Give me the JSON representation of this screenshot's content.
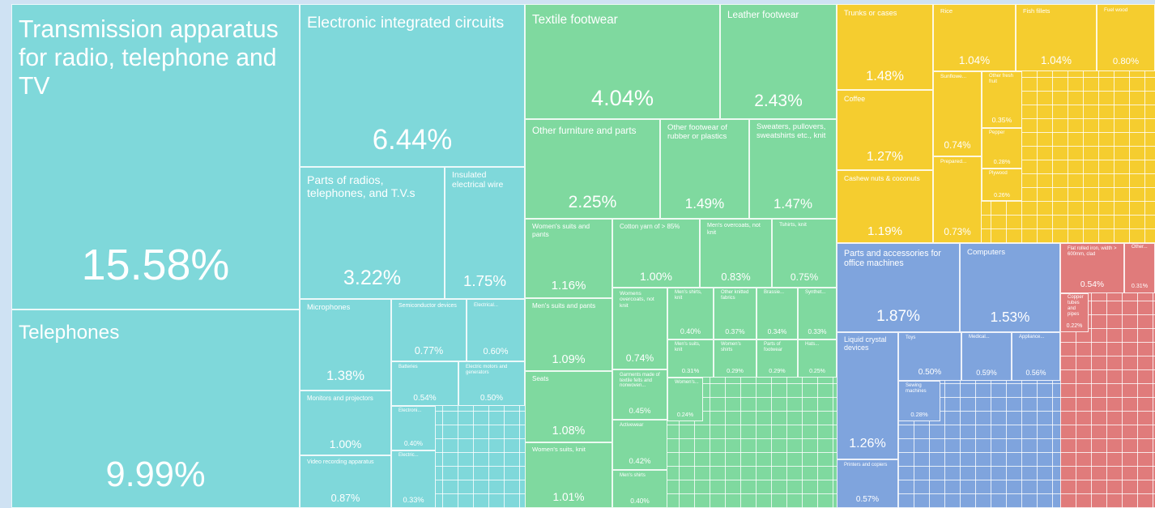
{
  "chart_data": {
    "type": "treemap",
    "categories": [
      "Transmission apparatus for radio, telephone and TV",
      "Telephones",
      "Electronic integrated circuits",
      "Parts of radios, telephones, and T.V.s",
      "Insulated electrical wire",
      "Microphones",
      "Semiconductor devices",
      "Electrical...",
      "Batteries",
      "Electric motors and generators",
      "Monitors and projectors",
      "Video recording apparatus",
      "Electroni...",
      "Electric...",
      "Textile footwear",
      "Leather footwear",
      "Other furniture and parts",
      "Other footwear of rubber or plastics",
      "Sweaters, pullovers, sweatshirts etc., knit",
      "Women's suits and pants",
      "Cotton yarn of > 85%",
      "Men's overcoats, not knit",
      "Tshirts, knit",
      "Men's suits and pants",
      "Seats",
      "Women's suits, knit",
      "Womens overcoats, not knit",
      "Men's shirts, knit",
      "Other knitted fabrics",
      "Brassie...",
      "Synthet...",
      "Men's suits, knit",
      "Women's shirts",
      "Parts of footwear",
      "Hats...",
      "Garments made of textile felts and nonwoven...",
      "Activewear",
      "Men's shirts",
      "Women's...",
      "Trunks or cases",
      "Rice",
      "Fish fillets",
      "Fuel wood",
      "Coffee",
      "Cashew nuts & coconuts",
      "Sunflowe...",
      "Prepared...",
      "Other fresh fruit",
      "Pepper",
      "Plywood",
      "Parts and accessories for office machines",
      "Computers",
      "Liquid crystal devices",
      "Toys",
      "Medical...",
      "Appliance...",
      "Sewing machines",
      "Printers and copiers",
      "Flat rolled iron, width > 600mm, clad",
      "Other...",
      "Copper tubes and pipes"
    ],
    "values": [
      15.58,
      9.99,
      6.44,
      3.22,
      1.75,
      1.38,
      0.77,
      0.6,
      0.54,
      0.5,
      1.0,
      0.87,
      0.4,
      0.33,
      4.04,
      2.43,
      2.25,
      1.49,
      1.47,
      1.16,
      1.0,
      0.83,
      0.75,
      1.09,
      1.08,
      1.01,
      0.74,
      0.4,
      0.37,
      0.34,
      0.33,
      0.31,
      0.29,
      0.29,
      0.25,
      0.45,
      0.42,
      0.4,
      0.24,
      1.48,
      1.04,
      1.04,
      0.8,
      1.27,
      1.19,
      0.74,
      0.73,
      0.35,
      0.28,
      0.26,
      1.87,
      1.53,
      1.26,
      0.5,
      0.59,
      0.56,
      0.28,
      0.57,
      0.54,
      0.31,
      0.22
    ],
    "value_labels": [
      "15.58%",
      "9.99%",
      "6.44%",
      "3.22%",
      "1.75%",
      "1.38%",
      "0.77%",
      "0.60%",
      "0.54%",
      "0.50%",
      "1.00%",
      "0.87%",
      "0.40%",
      "0.33%",
      "4.04%",
      "2.43%",
      "2.25%",
      "1.49%",
      "1.47%",
      "1.16%",
      "1.00%",
      "0.83%",
      "0.75%",
      "1.09%",
      "1.08%",
      "1.01%",
      "0.74%",
      "0.40%",
      "0.37%",
      "0.34%",
      "0.33%",
      "0.31%",
      "0.29%",
      "0.29%",
      "0.25%",
      "0.45%",
      "0.42%",
      "0.40%",
      "0.24%",
      "1.48%",
      "1.04%",
      "1.04%",
      "0.80%",
      "1.27%",
      "1.19%",
      "0.74%",
      "0.73%",
      "0.35%",
      "0.28%",
      "0.26%",
      "1.87%",
      "1.53%",
      "1.26%",
      "0.50%",
      "0.59%",
      "0.56%",
      "0.28%",
      "0.57%",
      "0.54%",
      "0.31%",
      "0.22%"
    ],
    "colors": [
      "#7fd8da",
      "#7fd8da",
      "#7fd8da",
      "#7fd8da",
      "#7fd8da",
      "#7fd8da",
      "#7fd8da",
      "#7fd8da",
      "#7fd8da",
      "#7fd8da",
      "#7fd8da",
      "#7fd8da",
      "#7fd8da",
      "#7fd8da",
      "#7fd99f",
      "#7fd99f",
      "#7fd99f",
      "#7fd99f",
      "#7fd99f",
      "#7fd99f",
      "#7fd99f",
      "#7fd99f",
      "#7fd99f",
      "#7fd99f",
      "#7fd99f",
      "#7fd99f",
      "#7fd99f",
      "#7fd99f",
      "#7fd99f",
      "#7fd99f",
      "#7fd99f",
      "#7fd99f",
      "#7fd99f",
      "#7fd99f",
      "#7fd99f",
      "#7fd99f",
      "#7fd99f",
      "#7fd99f",
      "#7fd99f",
      "#f5cd2f",
      "#f5cd2f",
      "#f5cd2f",
      "#f5cd2f",
      "#f5cd2f",
      "#f5cd2f",
      "#f5cd2f",
      "#f5cd2f",
      "#f5cd2f",
      "#f5cd2f",
      "#f5cd2f",
      "#7fa4dd",
      "#7fa4dd",
      "#7fa4dd",
      "#7fa4dd",
      "#7fa4dd",
      "#7fa4dd",
      "#7fa4dd",
      "#7fa4dd",
      "#e07b7b",
      "#e07b7b",
      "#e07b7b"
    ]
  }
}
